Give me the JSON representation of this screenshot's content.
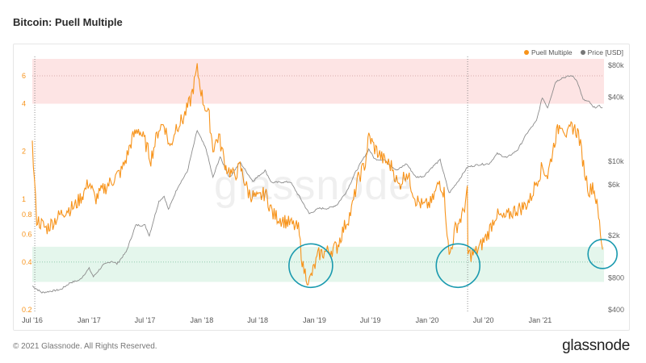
{
  "header": {
    "title": "Bitcoin: Puell Multiple"
  },
  "footer": {
    "copyright": "© 2021 Glassnode. All Rights Reserved.",
    "brand": "glassnode"
  },
  "watermark": "glassnode",
  "colors": {
    "puell": "#f7931a",
    "price": "#8c8c8c",
    "top_band": "#fde4e4",
    "bottom_band": "#e4f6ec",
    "circle": "#1a9aaf",
    "left_axis": "#f7931a",
    "right_axis": "#666666"
  },
  "chart_data": {
    "type": "line",
    "title": "Bitcoin: Puell Multiple",
    "legend": {
      "placement": "top-right",
      "entries": [
        "Puell Multiple",
        "Price [USD]"
      ]
    },
    "x_ticks": [
      "Jul '16",
      "Jan '17",
      "Jul '17",
      "Jan '18",
      "Jul '18",
      "Jan '19",
      "Jul '19",
      "Jan '20",
      "Jul '20",
      "Jan '21"
    ],
    "left_axis": {
      "scale": "log",
      "ticks": [
        "0.2",
        "0.4",
        "0.6",
        "0.8",
        "1",
        "2",
        "4",
        "6"
      ],
      "range": [
        0.2,
        7.5
      ]
    },
    "right_axis": {
      "scale": "log",
      "ticks": [
        "$400",
        "$800",
        "$2k",
        "$6k",
        "$10k",
        "$40k",
        "$80k"
      ],
      "range": [
        400,
        90000
      ]
    },
    "bands": {
      "top": {
        "from": 4,
        "to": 7.5
      },
      "bottom": {
        "from": 0.3,
        "to": 0.5
      }
    },
    "ref_lines": [
      6,
      0.4
    ],
    "series": [
      {
        "name": "Puell Multiple",
        "axis": "left",
        "points": [
          [
            "2016-07-01",
            2.2
          ],
          [
            "2016-07-15",
            0.75
          ],
          [
            "2016-08-15",
            0.65
          ],
          [
            "2016-09-15",
            0.75
          ],
          [
            "2016-10-15",
            0.85
          ],
          [
            "2016-11-15",
            0.9
          ],
          [
            "2016-12-15",
            1.1
          ],
          [
            "2017-01-01",
            1.3
          ],
          [
            "2017-01-20",
            1.0
          ],
          [
            "2017-02-15",
            1.15
          ],
          [
            "2017-03-15",
            1.3
          ],
          [
            "2017-04-15",
            1.5
          ],
          [
            "2017-05-01",
            1.8
          ],
          [
            "2017-05-20",
            2.4
          ],
          [
            "2017-06-10",
            2.8
          ],
          [
            "2017-07-01",
            2.3
          ],
          [
            "2017-07-20",
            1.8
          ],
          [
            "2017-08-15",
            2.8
          ],
          [
            "2017-09-01",
            3.0
          ],
          [
            "2017-09-20",
            2.1
          ],
          [
            "2017-10-10",
            2.9
          ],
          [
            "2017-11-01",
            3.2
          ],
          [
            "2017-11-25",
            4.2
          ],
          [
            "2017-12-17",
            6.6
          ],
          [
            "2018-01-05",
            4.2
          ],
          [
            "2018-01-25",
            3.3
          ],
          [
            "2018-02-06",
            2.1
          ],
          [
            "2018-02-25",
            2.5
          ],
          [
            "2018-03-20",
            1.6
          ],
          [
            "2018-04-15",
            1.4
          ],
          [
            "2018-05-05",
            1.6
          ],
          [
            "2018-06-01",
            1.1
          ],
          [
            "2018-07-01",
            1.0
          ],
          [
            "2018-07-25",
            1.1
          ],
          [
            "2018-08-20",
            0.8
          ],
          [
            "2018-09-15",
            0.75
          ],
          [
            "2018-10-15",
            0.7
          ],
          [
            "2018-11-10",
            0.65
          ],
          [
            "2018-11-25",
            0.37
          ],
          [
            "2018-12-15",
            0.3
          ],
          [
            "2019-01-15",
            0.45
          ],
          [
            "2019-02-15",
            0.47
          ],
          [
            "2019-03-15",
            0.5
          ],
          [
            "2019-04-05",
            0.65
          ],
          [
            "2019-05-01",
            0.85
          ],
          [
            "2019-05-20",
            1.3
          ],
          [
            "2019-06-15",
            1.7
          ],
          [
            "2019-06-26",
            2.5
          ],
          [
            "2019-07-15",
            2.1
          ],
          [
            "2019-08-10",
            1.8
          ],
          [
            "2019-09-10",
            1.6
          ],
          [
            "2019-09-30",
            1.2
          ],
          [
            "2019-10-26",
            1.5
          ],
          [
            "2019-11-25",
            1.0
          ],
          [
            "2019-12-20",
            0.9
          ],
          [
            "2020-01-15",
            0.95
          ],
          [
            "2020-02-10",
            1.3
          ],
          [
            "2020-02-25",
            1.1
          ],
          [
            "2020-03-12",
            0.43
          ],
          [
            "2020-04-01",
            0.65
          ],
          [
            "2020-04-25",
            0.8
          ],
          [
            "2020-05-10",
            1.1
          ],
          [
            "2020-05-12",
            0.45
          ],
          [
            "2020-06-01",
            0.45
          ],
          [
            "2020-06-20",
            0.5
          ],
          [
            "2020-07-15",
            0.6
          ],
          [
            "2020-08-10",
            0.8
          ],
          [
            "2020-09-05",
            0.75
          ],
          [
            "2020-10-10",
            0.85
          ],
          [
            "2020-11-10",
            0.9
          ],
          [
            "2020-11-30",
            1.0
          ],
          [
            "2020-12-20",
            1.3
          ],
          [
            "2021-01-08",
            1.6
          ],
          [
            "2021-01-25",
            1.4
          ],
          [
            "2021-02-20",
            2.5
          ],
          [
            "2021-03-10",
            3.1
          ],
          [
            "2021-03-30",
            2.5
          ],
          [
            "2021-04-14",
            2.9
          ],
          [
            "2021-05-05",
            2.6
          ],
          [
            "2021-05-25",
            1.5
          ],
          [
            "2021-06-10",
            1.1
          ],
          [
            "2021-06-20",
            1.25
          ],
          [
            "2021-07-01",
            1.0
          ],
          [
            "2021-07-12",
            0.7
          ],
          [
            "2021-07-22",
            0.48
          ]
        ]
      },
      {
        "name": "Price [USD]",
        "axis": "right",
        "points": [
          [
            "2016-07-01",
            670
          ],
          [
            "2016-08-01",
            580
          ],
          [
            "2016-09-01",
            600
          ],
          [
            "2016-10-01",
            620
          ],
          [
            "2016-11-01",
            720
          ],
          [
            "2016-12-01",
            760
          ],
          [
            "2017-01-01",
            980
          ],
          [
            "2017-01-15",
            820
          ],
          [
            "2017-02-15",
            1050
          ],
          [
            "2017-03-15",
            1150
          ],
          [
            "2017-04-01",
            1080
          ],
          [
            "2017-05-01",
            1400
          ],
          [
            "2017-06-01",
            2500
          ],
          [
            "2017-07-01",
            2500
          ],
          [
            "2017-07-15",
            2000
          ],
          [
            "2017-08-15",
            4200
          ],
          [
            "2017-09-01",
            4700
          ],
          [
            "2017-09-15",
            3500
          ],
          [
            "2017-10-15",
            5700
          ],
          [
            "2017-11-15",
            8000
          ],
          [
            "2017-12-17",
            19500
          ],
          [
            "2018-01-15",
            13000
          ],
          [
            "2018-02-06",
            7000
          ],
          [
            "2018-03-01",
            11000
          ],
          [
            "2018-04-01",
            7000
          ],
          [
            "2018-05-05",
            9800
          ],
          [
            "2018-06-15",
            6500
          ],
          [
            "2018-07-25",
            8200
          ],
          [
            "2018-08-15",
            6300
          ],
          [
            "2018-10-15",
            6400
          ],
          [
            "2018-11-20",
            4300
          ],
          [
            "2018-12-15",
            3200
          ],
          [
            "2019-01-15",
            3600
          ],
          [
            "2019-02-15",
            3600
          ],
          [
            "2019-03-15",
            3900
          ],
          [
            "2019-04-15",
            5200
          ],
          [
            "2019-05-15",
            8000
          ],
          [
            "2019-06-26",
            13000
          ],
          [
            "2019-07-15",
            10500
          ],
          [
            "2019-08-15",
            10300
          ],
          [
            "2019-09-25",
            8200
          ],
          [
            "2019-10-26",
            9500
          ],
          [
            "2019-11-25",
            7100
          ],
          [
            "2019-12-20",
            7200
          ],
          [
            "2020-01-15",
            8700
          ],
          [
            "2020-02-12",
            10300
          ],
          [
            "2020-03-12",
            5000
          ],
          [
            "2020-04-15",
            6800
          ],
          [
            "2020-05-10",
            8800
          ],
          [
            "2020-06-15",
            9300
          ],
          [
            "2020-07-20",
            9500
          ],
          [
            "2020-08-15",
            11800
          ],
          [
            "2020-09-15",
            10800
          ],
          [
            "2020-10-20",
            12800
          ],
          [
            "2020-11-20",
            18500
          ],
          [
            "2020-12-20",
            24000
          ],
          [
            "2021-01-08",
            40000
          ],
          [
            "2021-01-25",
            32000
          ],
          [
            "2021-02-20",
            56000
          ],
          [
            "2021-03-13",
            61000
          ],
          [
            "2021-04-14",
            64000
          ],
          [
            "2021-05-01",
            57000
          ],
          [
            "2021-05-20",
            38000
          ],
          [
            "2021-06-10",
            36000
          ],
          [
            "2021-06-22",
            32000
          ],
          [
            "2021-07-12",
            33000
          ],
          [
            "2021-07-22",
            32000
          ]
        ]
      }
    ],
    "annotations": [
      {
        "type": "circle",
        "x": "2018-12-20",
        "y": 0.38
      },
      {
        "type": "circle",
        "x": "2020-04-10",
        "y": 0.38
      },
      {
        "type": "circle",
        "x": "2021-07-22",
        "y": 0.45
      }
    ]
  }
}
